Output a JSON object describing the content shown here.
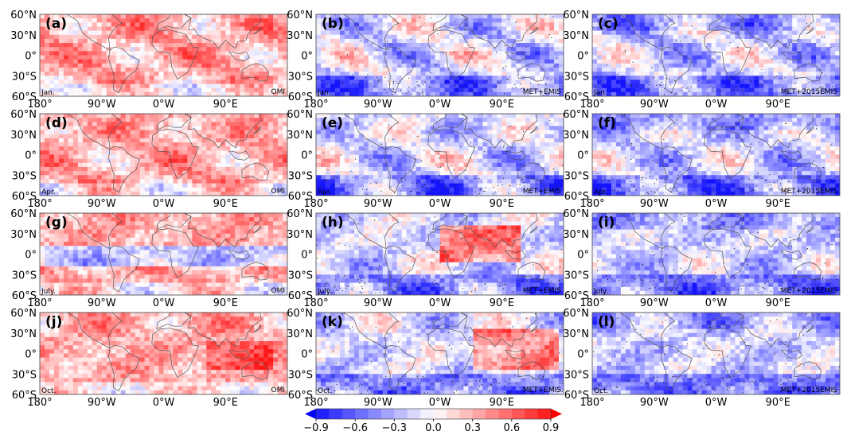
{
  "chart_data": {
    "type": "heatmap",
    "title": "",
    "layout": "4 rows x 3 columns of global maps with one shared horizontal colorbar at the bottom",
    "x_ticks": [
      "180°",
      "90°W",
      "0°W",
      "90°E"
    ],
    "y_ticks": [
      "60°N",
      "30°N",
      "0°",
      "30°S",
      "60°S"
    ],
    "lon_range": [
      -180,
      180
    ],
    "lat_range": [
      -60,
      60
    ],
    "stippling": "black dots mark selected grid points in the model panels",
    "colorbar": {
      "min": -0.9,
      "max": 0.9,
      "extend": "both",
      "ticks": [
        "−0.9",
        "−0.6",
        "−0.3",
        "0.0",
        "0.3",
        "0.6",
        "0.9"
      ],
      "colors": {
        "negative": "#0000ff",
        "zero": "#ffffff",
        "positive": "#ff0000"
      }
    },
    "panels": [
      {
        "letter": "(a)",
        "month": "Jan.",
        "source": "OMI"
      },
      {
        "letter": "(b)",
        "month": "Jan.",
        "source": "MET+EMIS"
      },
      {
        "letter": "(c)",
        "month": "Jan.",
        "source": "MET+2015EMIS"
      },
      {
        "letter": "(d)",
        "month": "Apr.",
        "source": "OMI"
      },
      {
        "letter": "(e)",
        "month": "Apr.",
        "source": "MET+EMIS"
      },
      {
        "letter": "(f)",
        "month": "Apr.",
        "source": "MET+2015EMIS"
      },
      {
        "letter": "(g)",
        "month": "July.",
        "source": "OMI"
      },
      {
        "letter": "(h)",
        "month": "July.",
        "source": "MET+EMIS"
      },
      {
        "letter": "(i)",
        "month": "July.",
        "source": "MET+2015EMIS"
      },
      {
        "letter": "(j)",
        "month": "Oct.",
        "source": "OMI"
      },
      {
        "letter": "(k)",
        "month": "Oct.",
        "source": "MET+EMIS"
      },
      {
        "letter": "(l)",
        "month": "Oct.",
        "source": "MET+2015EMIS"
      }
    ]
  }
}
